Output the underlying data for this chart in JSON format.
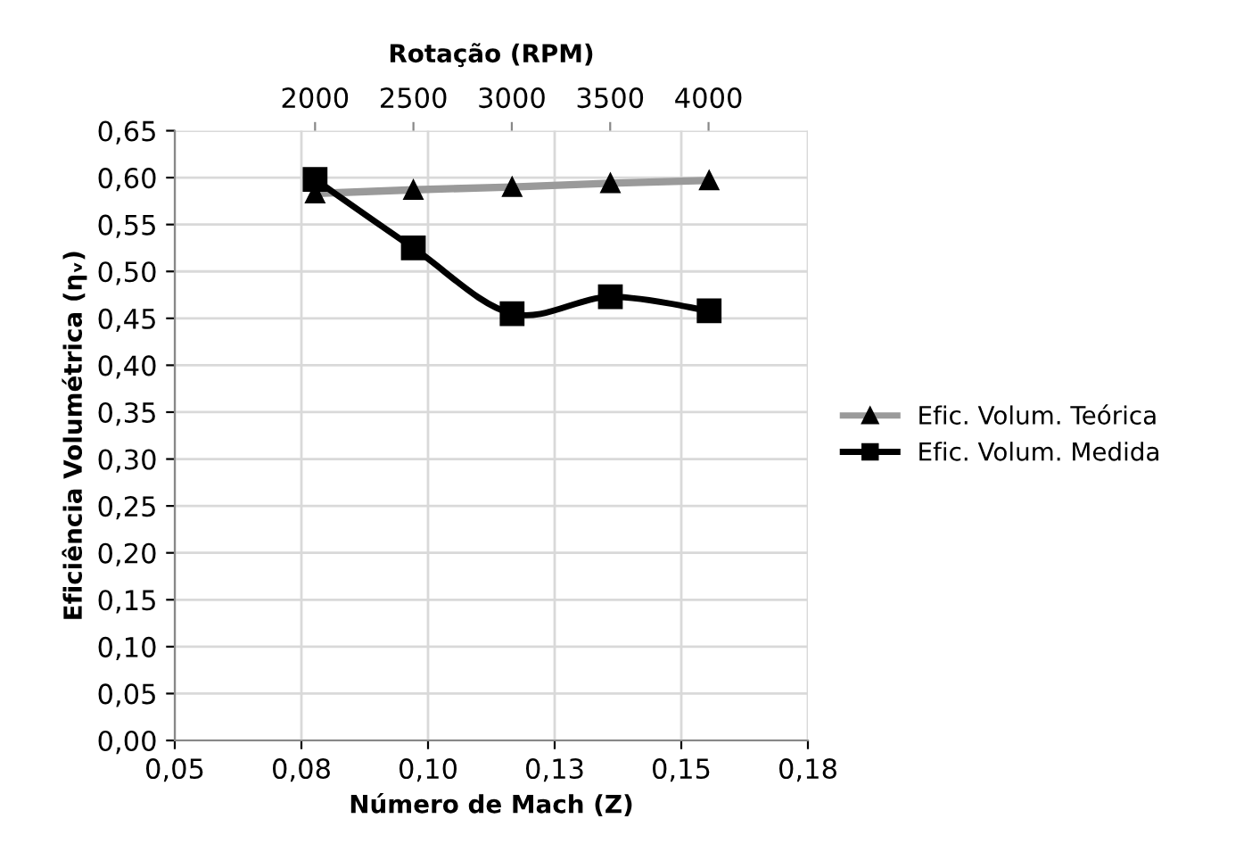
{
  "chart_data": {
    "type": "line",
    "xlabel": "Número de Mach (Z)",
    "ylabel": "Eficiência Volumétrica (ηᵥ)",
    "x2label": "Rotação (RPM)",
    "x": [
      0.0777,
      0.0971,
      0.1166,
      0.136,
      0.1555
    ],
    "series": [
      {
        "name": "Efic. Volum. Teórica",
        "color": "#9a9a9a",
        "marker": "triangle",
        "values": [
          0.583,
          0.587,
          0.59,
          0.594,
          0.597
        ]
      },
      {
        "name": "Efic. Volum. Medida",
        "color": "#000000",
        "marker": "square",
        "values": [
          0.598,
          0.525,
          0.455,
          0.473,
          0.458
        ]
      }
    ],
    "xlim": [
      0.05,
      0.175
    ],
    "xticks": [
      {
        "value": 0.05,
        "label": "0,05"
      },
      {
        "value": 0.075,
        "label": "0,08"
      },
      {
        "value": 0.1,
        "label": "0,10"
      },
      {
        "value": 0.125,
        "label": "0,13"
      },
      {
        "value": 0.15,
        "label": "0,15"
      },
      {
        "value": 0.175,
        "label": "0,18"
      }
    ],
    "x2lim": [
      1287,
      4505
    ],
    "x2ticks": [
      2000,
      2500,
      3000,
      3500,
      4000
    ],
    "ylim": [
      0,
      0.65
    ],
    "yticks": [
      {
        "value": 0,
        "label": "0,00"
      },
      {
        "value": 0.05,
        "label": "0,05"
      },
      {
        "value": 0.1,
        "label": "0,10"
      },
      {
        "value": 0.15,
        "label": "0,15"
      },
      {
        "value": 0.2,
        "label": "0,20"
      },
      {
        "value": 0.25,
        "label": "0,25"
      },
      {
        "value": 0.3,
        "label": "0,30"
      },
      {
        "value": 0.35,
        "label": "0,35"
      },
      {
        "value": 0.4,
        "label": "0,40"
      },
      {
        "value": 0.45,
        "label": "0,45"
      },
      {
        "value": 0.5,
        "label": "0,50"
      },
      {
        "value": 0.55,
        "label": "0,55"
      },
      {
        "value": 0.6,
        "label": "0,60"
      },
      {
        "value": 0.65,
        "label": "0,65"
      }
    ],
    "grid": true,
    "legend": "right",
    "line_style": "solid"
  }
}
